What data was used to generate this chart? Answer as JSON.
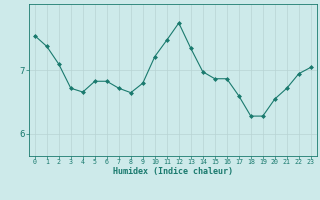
{
  "x": [
    0,
    1,
    2,
    3,
    4,
    5,
    6,
    7,
    8,
    9,
    10,
    11,
    12,
    13,
    14,
    15,
    16,
    17,
    18,
    19,
    20,
    21,
    22,
    23
  ],
  "y": [
    7.55,
    7.38,
    7.1,
    6.72,
    6.66,
    6.83,
    6.83,
    6.72,
    6.65,
    6.8,
    7.22,
    7.48,
    7.75,
    7.35,
    6.98,
    6.87,
    6.87,
    6.6,
    6.28,
    6.28,
    6.55,
    6.72,
    6.95,
    7.05
  ],
  "line_color": "#1a7a6e",
  "marker": "D",
  "marker_size": 2.0,
  "bg_color": "#cdeaea",
  "grid_color": "#b8d4d4",
  "xlabel": "Humidex (Indice chaleur)",
  "ytick_labels": [
    "6",
    "7"
  ],
  "ytick_values": [
    6.0,
    7.0
  ],
  "xlim": [
    -0.5,
    23.5
  ],
  "ylim": [
    5.65,
    8.05
  ],
  "axis_color": "#1a7a6e",
  "tick_color": "#1a7a6e",
  "label_color": "#1a7a6e",
  "xlabel_fontsize": 6.0,
  "xtick_fontsize": 4.8,
  "ytick_fontsize": 6.5
}
